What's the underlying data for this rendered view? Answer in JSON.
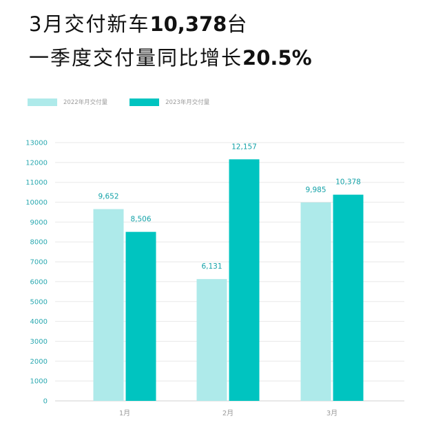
{
  "headline": {
    "line1_text": "3月交付新车",
    "line1_highlight": "10,378",
    "line1_suffix": "台",
    "line2_text": "一季度交付量同比增长",
    "line2_highlight": "20.5%"
  },
  "colors": {
    "series_2022": "#aeeaea",
    "series_2023": "#00c4c0",
    "axis_text": "#2aa8b0",
    "data_label": "#13a2a8",
    "grid": "#e8e8e8",
    "category_text": "#9a9a9a"
  },
  "chart_data": {
    "type": "bar",
    "title": "",
    "categories": [
      "1月",
      "2月",
      "3月"
    ],
    "series": [
      {
        "name": "2022年月交付量",
        "values": [
          9652,
          6131,
          9985
        ],
        "labels": [
          "9,652",
          "6,131",
          "9,985"
        ]
      },
      {
        "name": "2023年月交付量",
        "values": [
          8506,
          12157,
          10378
        ],
        "labels": [
          "8,506",
          "12,157",
          "10,378"
        ]
      }
    ],
    "ylim": [
      0,
      13000
    ],
    "y_ticks": [
      0,
      1000,
      2000,
      3000,
      4000,
      5000,
      6000,
      7000,
      8000,
      9000,
      10000,
      11000,
      12000,
      13000
    ],
    "grid": true,
    "legend_position": "top-left",
    "xlabel": "",
    "ylabel": ""
  }
}
